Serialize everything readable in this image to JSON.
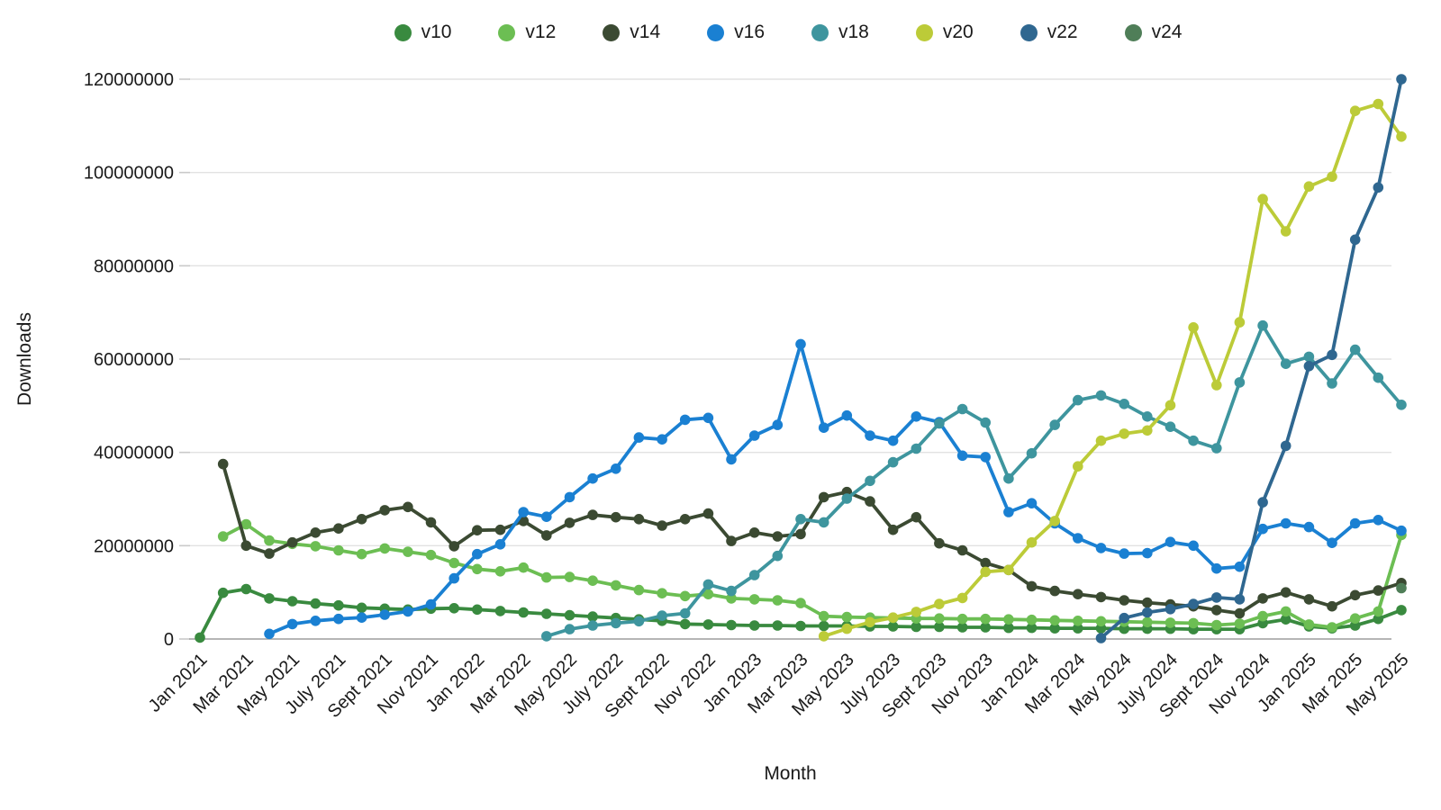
{
  "chart_data": {
    "type": "line",
    "title": "",
    "xlabel": "Month",
    "ylabel": "Downloads",
    "values_unit": "millions of downloads (plotted axis shows raw counts)",
    "ylim": [
      0,
      120000000
    ],
    "grid": "horizontal",
    "legend_position": "top-center",
    "y_ticks": [
      0,
      20000000,
      40000000,
      60000000,
      80000000,
      100000000,
      120000000
    ],
    "months_total": 53,
    "x_tick_positions": [
      0,
      2,
      4,
      6,
      8,
      10,
      12,
      14,
      16,
      18,
      20,
      22,
      24,
      26,
      28,
      30,
      32,
      34,
      36,
      38,
      40,
      42,
      44,
      46,
      48,
      50,
      52
    ],
    "x_tick_labels": [
      "Jan 2021",
      "Mar 2021",
      "May 2021",
      "July 2021",
      "Sept 2021",
      "Nov 2021",
      "Jan 2022",
      "Mar 2022",
      "May 2022",
      "July 2022",
      "Sept 2022",
      "Nov 2022",
      "Jan 2023",
      "Mar 2023",
      "May 2023",
      "July 2023",
      "Sept 2023",
      "Nov 2023",
      "Jan 2024",
      "Mar 2024",
      "May 2024",
      "July 2024",
      "Sept 2024",
      "Nov 2024",
      "Jan 2025",
      "Mar 2025",
      "May 2025"
    ],
    "series": [
      {
        "name": "v10",
        "color": "#398A3F",
        "values": [
          0.3,
          9.9,
          10.7,
          8.7,
          8.1,
          7.6,
          7.2,
          6.7,
          6.5,
          6.3,
          6.5,
          6.6,
          6.3,
          6.0,
          5.7,
          5.4,
          5.1,
          4.8,
          4.5,
          4.2,
          3.9,
          3.2,
          3.1,
          3.0,
          2.9,
          2.9,
          2.8,
          2.8,
          2.8,
          2.7,
          2.7,
          2.6,
          2.6,
          2.5,
          2.5,
          2.4,
          2.4,
          2.3,
          2.3,
          2.3,
          2.2,
          2.2,
          2.2,
          2.1,
          2.1,
          2.1,
          3.4,
          4.2,
          2.7,
          2.3,
          2.9,
          4.3,
          6.2
        ]
      },
      {
        "name": "v12",
        "color": "#6CBE53",
        "values": [
          null,
          22.0,
          24.6,
          21.1,
          20.4,
          19.9,
          19.0,
          18.2,
          19.4,
          18.7,
          18.0,
          16.3,
          15.0,
          14.5,
          15.3,
          13.2,
          13.3,
          12.5,
          11.5,
          10.5,
          9.8,
          9.2,
          9.6,
          8.7,
          8.5,
          8.3,
          7.7,
          4.9,
          4.7,
          4.6,
          4.5,
          4.4,
          4.4,
          4.3,
          4.3,
          4.2,
          4.1,
          4.0,
          3.9,
          3.8,
          3.7,
          3.6,
          3.5,
          3.4,
          3.0,
          3.3,
          4.9,
          5.9,
          3.1,
          2.5,
          4.4,
          5.9,
          22.3
        ]
      },
      {
        "name": "v14",
        "color": "#3B4A32",
        "values": [
          null,
          37.5,
          20.0,
          18.3,
          20.7,
          22.8,
          23.7,
          25.7,
          27.6,
          28.3,
          25.0,
          19.9,
          23.3,
          23.4,
          25.3,
          22.2,
          24.9,
          26.6,
          26.1,
          25.7,
          24.3,
          25.7,
          26.9,
          21.0,
          22.8,
          22.0,
          22.5,
          30.4,
          31.5,
          29.5,
          23.4,
          26.1,
          20.5,
          19.0,
          16.3,
          14.8,
          11.3,
          10.3,
          9.6,
          9.0,
          8.3,
          7.8,
          7.4,
          7.0,
          6.2,
          5.5,
          8.7,
          10.0,
          8.5,
          7.0,
          9.4,
          10.4,
          12.0
        ]
      },
      {
        "name": "v16",
        "color": "#1A80D2",
        "values": [
          null,
          null,
          null,
          1.1,
          3.2,
          3.9,
          4.3,
          4.6,
          5.2,
          5.9,
          7.4,
          13.0,
          18.2,
          20.3,
          27.2,
          26.2,
          30.4,
          34.4,
          36.5,
          43.2,
          42.8,
          47.0,
          47.4,
          38.5,
          43.6,
          45.9,
          63.2,
          45.3,
          47.9,
          43.6,
          42.5,
          47.7,
          46.5,
          39.3,
          39.0,
          27.2,
          29.1,
          24.8,
          21.6,
          19.5,
          18.3,
          18.4,
          20.8,
          20.0,
          15.1,
          15.5,
          23.6,
          24.8,
          24.0,
          20.6,
          24.8,
          25.5,
          23.2
        ]
      },
      {
        "name": "v18",
        "color": "#3E959E",
        "values": [
          null,
          null,
          null,
          null,
          null,
          null,
          null,
          null,
          null,
          null,
          null,
          null,
          null,
          null,
          null,
          0.6,
          2.1,
          2.9,
          3.4,
          3.8,
          5.0,
          5.5,
          11.7,
          10.3,
          13.7,
          17.8,
          25.7,
          25.0,
          30.1,
          33.9,
          37.9,
          40.8,
          46.2,
          49.3,
          46.4,
          34.4,
          39.8,
          45.9,
          51.2,
          52.2,
          50.4,
          47.7,
          45.5,
          42.5,
          40.9,
          55.0,
          67.2,
          59.0,
          60.5,
          54.8,
          62.0,
          56.0,
          50.2
        ]
      },
      {
        "name": "v20",
        "color": "#BCCB38",
        "values": [
          null,
          null,
          null,
          null,
          null,
          null,
          null,
          null,
          null,
          null,
          null,
          null,
          null,
          null,
          null,
          null,
          null,
          null,
          null,
          null,
          null,
          null,
          null,
          null,
          null,
          null,
          null,
          0.6,
          2.2,
          3.6,
          4.6,
          5.8,
          7.5,
          8.8,
          14.4,
          14.8,
          20.7,
          25.3,
          37.0,
          42.5,
          44.0,
          44.7,
          50.1,
          66.8,
          54.4,
          67.9,
          94.3,
          87.4,
          97.0,
          99.1,
          113.2,
          114.7,
          107.7
        ]
      },
      {
        "name": "v22",
        "color": "#2F6790",
        "values": [
          null,
          null,
          null,
          null,
          null,
          null,
          null,
          null,
          null,
          null,
          null,
          null,
          null,
          null,
          null,
          null,
          null,
          null,
          null,
          null,
          null,
          null,
          null,
          null,
          null,
          null,
          null,
          null,
          null,
          null,
          null,
          null,
          null,
          null,
          null,
          null,
          null,
          null,
          null,
          0.2,
          4.5,
          5.7,
          6.4,
          7.5,
          8.9,
          8.5,
          29.3,
          41.4,
          58.5,
          60.9,
          85.6,
          96.8,
          120.0
        ]
      },
      {
        "name": "v24",
        "color": "#4F7E58",
        "values": [
          null,
          null,
          null,
          null,
          null,
          null,
          null,
          null,
          null,
          null,
          null,
          null,
          null,
          null,
          null,
          null,
          null,
          null,
          null,
          null,
          null,
          null,
          null,
          null,
          null,
          null,
          null,
          null,
          null,
          null,
          null,
          null,
          null,
          null,
          null,
          null,
          null,
          null,
          null,
          null,
          null,
          null,
          null,
          null,
          null,
          null,
          null,
          null,
          null,
          null,
          null,
          null,
          10.9
        ]
      }
    ]
  },
  "style": {
    "gridline_color": "#E2E2E2",
    "axis_line_color": "#9E9E9E",
    "tick_mark_color": "#C9C9C9",
    "text_color": "#1A1A1A",
    "background": "#FFFFFF"
  }
}
